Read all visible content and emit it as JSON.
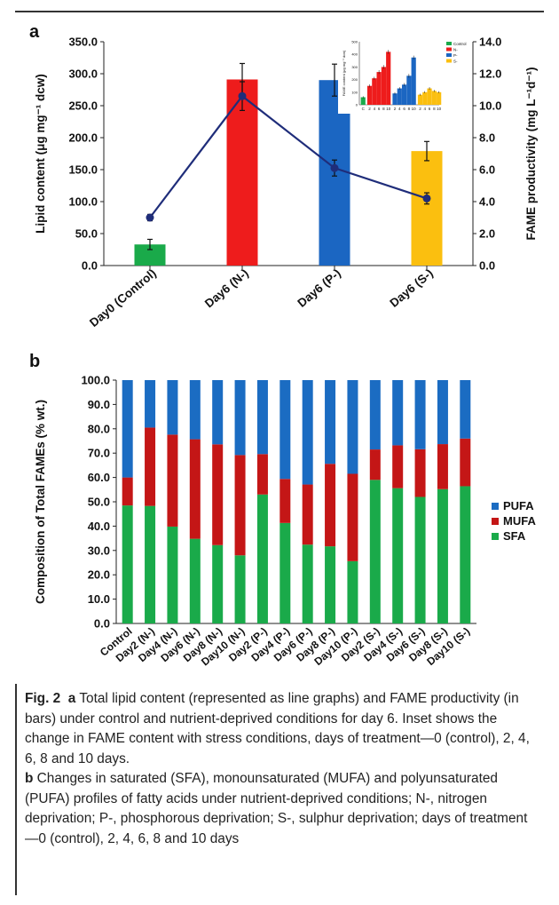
{
  "chart_data": [
    {
      "panel": "a",
      "type": "bar+line",
      "ylabel_left": "Lipid content (μg mg⁻¹ dcw)",
      "ylabel_right": "FAME productivity (mg L⁻¹d⁻¹)",
      "ylim_left": [
        0,
        350
      ],
      "ylim_right": [
        0,
        14
      ],
      "yticks_left": [
        "0.0",
        "50.0",
        "100.0",
        "150.0",
        "200.0",
        "250.0",
        "300.0",
        "350.0"
      ],
      "yticks_right": [
        "0.0",
        "2.0",
        "4.0",
        "6.0",
        "8.0",
        "10.0",
        "12.0",
        "14.0"
      ],
      "categories": [
        "Day0 (Control)",
        "Day6 (N-)",
        "Day6 (P-)",
        "Day6 (S-)"
      ],
      "bars": {
        "values": [
          33,
          291,
          290,
          179
        ],
        "errors": [
          8,
          25,
          25,
          15
        ],
        "colors": [
          "#1aaa4a",
          "#ee1c1c",
          "#1b66c2",
          "#fbbf0f"
        ]
      },
      "line": {
        "values": [
          3.0,
          10.6,
          6.1,
          4.2
        ],
        "errors": [
          0.2,
          0.9,
          0.5,
          0.35
        ],
        "color": "#1f2d7a"
      },
      "inset": {
        "ylabel": "FAME content (μg mg⁻¹ dcw)",
        "ylim": [
          0,
          500
        ],
        "yticks": [
          "0",
          "50",
          "100",
          "150",
          "200",
          "250",
          "300",
          "350",
          "400",
          "450",
          "500"
        ],
        "xticks": [
          "C",
          "2",
          "4",
          "6",
          "8",
          "10",
          "2",
          "4",
          "6",
          "8",
          "10",
          "2",
          "4",
          "6",
          "8",
          "10"
        ],
        "values": [
          60,
          150,
          210,
          260,
          300,
          420,
          90,
          130,
          160,
          230,
          375,
          80,
          100,
          130,
          110,
          100
        ],
        "errors": [
          8,
          12,
          12,
          15,
          15,
          15,
          10,
          10,
          12,
          15,
          15,
          8,
          8,
          10,
          8,
          8
        ],
        "group_colors": [
          "#1aaa4a",
          "#ee1c1c",
          "#1b66c2",
          "#fbbf0f"
        ],
        "legend": [
          "Control",
          "N-",
          "P-",
          "S-"
        ]
      }
    },
    {
      "panel": "b",
      "type": "stacked-bar",
      "ylabel": "Composition of Total FAMEs (% wt.)",
      "ylim": [
        0,
        100
      ],
      "yticks": [
        "0.0",
        "10.0",
        "20.0",
        "30.0",
        "40.0",
        "50.0",
        "60.0",
        "70.0",
        "80.0",
        "90.0",
        "100.0"
      ],
      "categories": [
        "Control",
        "Day2 (N-)",
        "Day4 (N-)",
        "Day6 (N-)",
        "Day8 (N-)",
        "Day10 (N-)",
        "Day2 (P-)",
        "Day4 (P-)",
        "Day6 (P-)",
        "Day8 (P-)",
        "Day10 (P-)",
        "Day2 (S-)",
        "Day4 (S-)",
        "Day6 (S-)",
        "Day8 (S-)",
        "Day10 (S-)"
      ],
      "series": [
        {
          "name": "SFA",
          "color": "#1aaa4a",
          "values": [
            48.5,
            48.3,
            39.8,
            34.8,
            32.2,
            28.0,
            53.0,
            41.3,
            32.4,
            31.7,
            25.6,
            59.0,
            55.6,
            52.0,
            55.2,
            56.4
          ]
        },
        {
          "name": "MUFA",
          "color": "#c41616",
          "values": [
            11.5,
            32.2,
            37.8,
            40.9,
            41.4,
            41.2,
            16.6,
            18.1,
            24.7,
            33.9,
            35.9,
            12.5,
            17.6,
            19.6,
            18.5,
            19.6
          ]
        },
        {
          "name": "PUFA",
          "color": "#1b6cc2",
          "values": [
            40.0,
            19.5,
            22.4,
            24.3,
            26.4,
            30.8,
            30.4,
            40.6,
            42.9,
            34.4,
            38.5,
            28.5,
            26.8,
            28.4,
            26.3,
            24.0
          ]
        }
      ],
      "legend_order": [
        "PUFA",
        "MUFA",
        "SFA"
      ],
      "legend_placement": "right"
    }
  ],
  "caption": {
    "fig_label": "Fig. 2",
    "a_label": "a",
    "a_text": " Total lipid content (represented as line graphs) and FAME productivity (in bars) under control and nutrient-deprived conditions for day 6. Inset shows the change in FAME content with stress conditions, days of treatment—0 (control), 2, 4, 6, 8 and 10 days.",
    "b_label": "b",
    "b_text": " Changes in saturated (SFA), monounsaturated (MUFA) and polyunsaturated (PUFA) profiles of fatty acids under nutrient-deprived conditions; N-, nitrogen deprivation; P-, phosphorous deprivation; S-, sulphur deprivation; days of treatment—0 (control), 2, 4, 6, 8 and 10 days"
  },
  "colors": {
    "control": "#1aaa4a",
    "n_minus": "#ee1c1c",
    "p_minus": "#1b66c2",
    "s_minus": "#fbbf0f",
    "line": "#1f2d7a"
  }
}
